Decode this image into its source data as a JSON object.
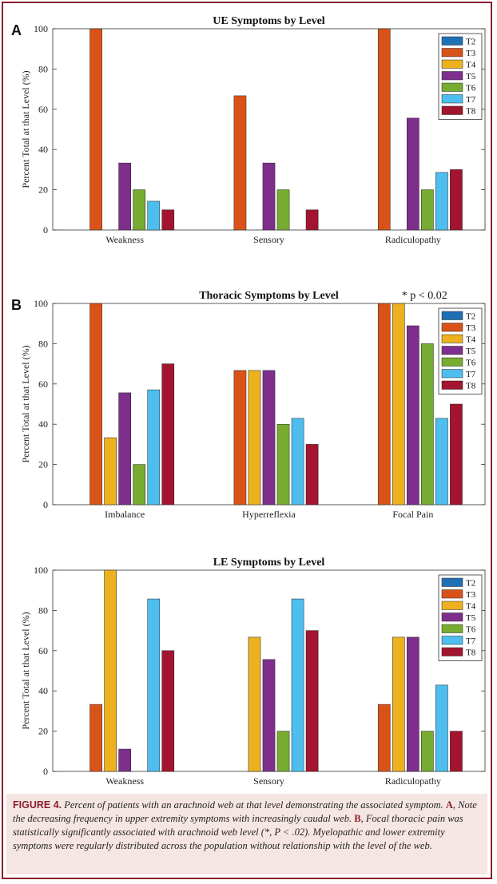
{
  "figure": {
    "panel_labels": [
      "A",
      "B"
    ],
    "caption": {
      "label": "FIGURE 4.",
      "intro": " Percent of patients with an arachnoid web at that level demonstrating the associated symptom. ",
      "key_a": "A",
      "part_a": ", Note the decreasing frequency in upper extremity symptoms with increasingly caudal web. ",
      "key_b": "B",
      "part_b": ", Focal thoracic pain was statistically significantly associated with arachnoid web level (*, P < .02). Myelopathic and lower extremity symptoms were regularly distributed across the population without relationship with the level of the web."
    }
  },
  "colors": {
    "T2": "#1f6fb4",
    "T3": "#d95319",
    "T4": "#edb120",
    "T5": "#7e2f8e",
    "T6": "#77ac30",
    "T7": "#4dbeee",
    "T8": "#a2142f",
    "border": "#8b1e2b"
  },
  "chart_data": [
    {
      "type": "bar",
      "title": "UE Symptoms by Level",
      "ylabel": "Percent Total at that Level (%)",
      "xlabel": "",
      "ylim": [
        0,
        100
      ],
      "yticks": [
        0,
        20,
        40,
        60,
        80,
        100
      ],
      "categories": [
        "Weakness",
        "Sensory",
        "Radiculopathy"
      ],
      "legend_position": "top-right",
      "annotation": "",
      "series": [
        {
          "name": "T2",
          "values": [
            0,
            0,
            0
          ]
        },
        {
          "name": "T3",
          "values": [
            100,
            66.7,
            100
          ]
        },
        {
          "name": "T4",
          "values": [
            0,
            0,
            0
          ]
        },
        {
          "name": "T5",
          "values": [
            33.3,
            33.3,
            55.6
          ]
        },
        {
          "name": "T6",
          "values": [
            20,
            20,
            20
          ]
        },
        {
          "name": "T7",
          "values": [
            14.3,
            0,
            28.6
          ]
        },
        {
          "name": "T8",
          "values": [
            10,
            10,
            30
          ]
        }
      ]
    },
    {
      "type": "bar",
      "title": "Thoracic Symptoms by Level",
      "ylabel": "Percent Total at that Level (%)",
      "xlabel": "",
      "ylim": [
        0,
        100
      ],
      "yticks": [
        0,
        20,
        40,
        60,
        80,
        100
      ],
      "categories": [
        "Imbalance",
        "Hyperreflexia",
        "Focal Pain"
      ],
      "legend_position": "top-right",
      "annotation": "* p < 0.02",
      "series": [
        {
          "name": "T2",
          "values": [
            0,
            0,
            0
          ]
        },
        {
          "name": "T3",
          "values": [
            100,
            66.7,
            100
          ]
        },
        {
          "name": "T4",
          "values": [
            33.3,
            66.7,
            100
          ]
        },
        {
          "name": "T5",
          "values": [
            55.6,
            66.7,
            88.9
          ]
        },
        {
          "name": "T6",
          "values": [
            20,
            40,
            80
          ]
        },
        {
          "name": "T7",
          "values": [
            57.1,
            42.9,
            42.9
          ]
        },
        {
          "name": "T8",
          "values": [
            70,
            30,
            50
          ]
        }
      ]
    },
    {
      "type": "bar",
      "title": "LE Symptoms by Level",
      "ylabel": "Percent Total at that Level (%)",
      "xlabel": "",
      "ylim": [
        0,
        100
      ],
      "yticks": [
        0,
        20,
        40,
        60,
        80,
        100
      ],
      "categories": [
        "Weakness",
        "Sensory",
        "Radiculopathy"
      ],
      "legend_position": "top-right",
      "annotation": "",
      "series": [
        {
          "name": "T2",
          "values": [
            0,
            0,
            0
          ]
        },
        {
          "name": "T3",
          "values": [
            33.3,
            0,
            33.3
          ]
        },
        {
          "name": "T4",
          "values": [
            100,
            66.7,
            66.7
          ]
        },
        {
          "name": "T5",
          "values": [
            11.1,
            55.6,
            66.7
          ]
        },
        {
          "name": "T6",
          "values": [
            0,
            20,
            20
          ]
        },
        {
          "name": "T7",
          "values": [
            85.7,
            85.7,
            42.9
          ]
        },
        {
          "name": "T8",
          "values": [
            60,
            70,
            20
          ]
        }
      ]
    }
  ]
}
